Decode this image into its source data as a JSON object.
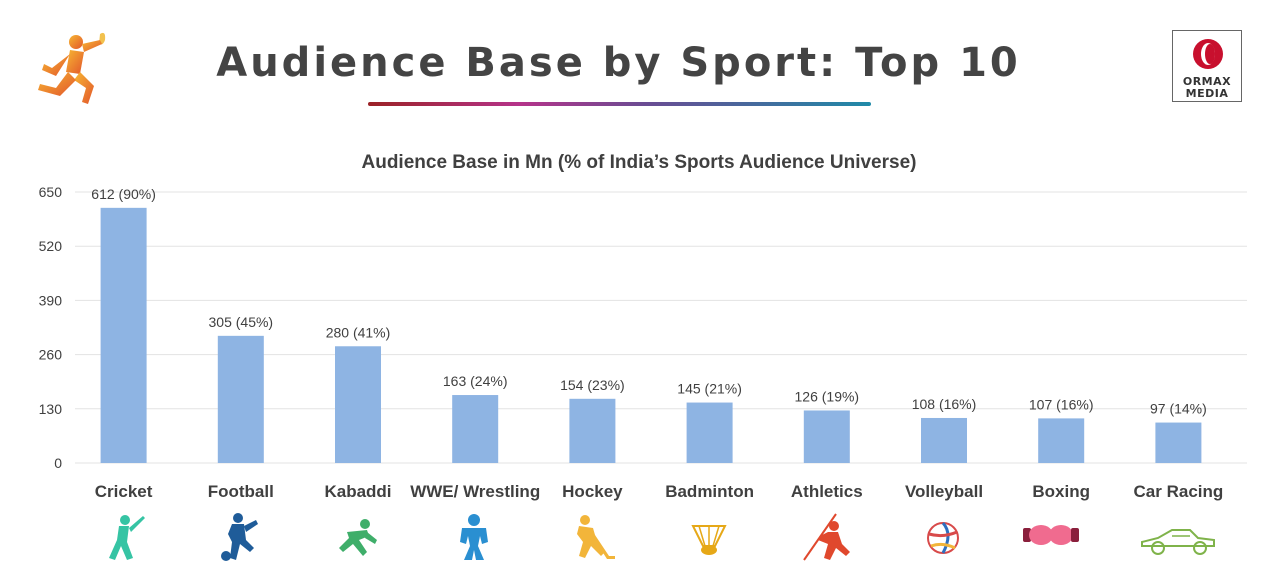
{
  "header": {
    "title": "Audience Base by Sport: Top 10",
    "logo_brand_line1": "ORMAX",
    "logo_brand_line2": "MEDIA"
  },
  "colors": {
    "bar": "#8eb4e3",
    "grid": "#e3e3e3",
    "text": "#404040",
    "title_text": "#444444"
  },
  "icons": [
    "cricket-batsman-icon",
    "football-player-icon",
    "kabaddi-player-icon",
    "wrestler-icon",
    "hockey-player-icon",
    "shuttlecock-icon",
    "javelin-thrower-icon",
    "volleyball-icon",
    "boxing-gloves-icon",
    "race-car-icon"
  ],
  "chart_data": {
    "type": "bar",
    "title": "Audience Base in Mn (% of India’s Sports Audience Universe)",
    "xlabel": "",
    "ylabel": "",
    "ylim": [
      0,
      650
    ],
    "yticks": [
      0,
      130,
      260,
      390,
      520,
      650
    ],
    "grid": true,
    "categories": [
      "Cricket",
      "Football",
      "Kabaddi",
      "WWE/ Wrestling",
      "Hockey",
      "Badminton",
      "Athletics",
      "Volleyball",
      "Boxing",
      "Car Racing"
    ],
    "values": [
      612,
      305,
      280,
      163,
      154,
      145,
      126,
      108,
      107,
      97
    ],
    "data_labels": [
      "612 (90%)",
      "305 (45%)",
      "280 (41%)",
      "163 (24%)",
      "154 (23%)",
      "145 (21%)",
      "126 (19%)",
      "108 (16%)",
      "107 (16%)",
      "97 (14%)"
    ]
  }
}
